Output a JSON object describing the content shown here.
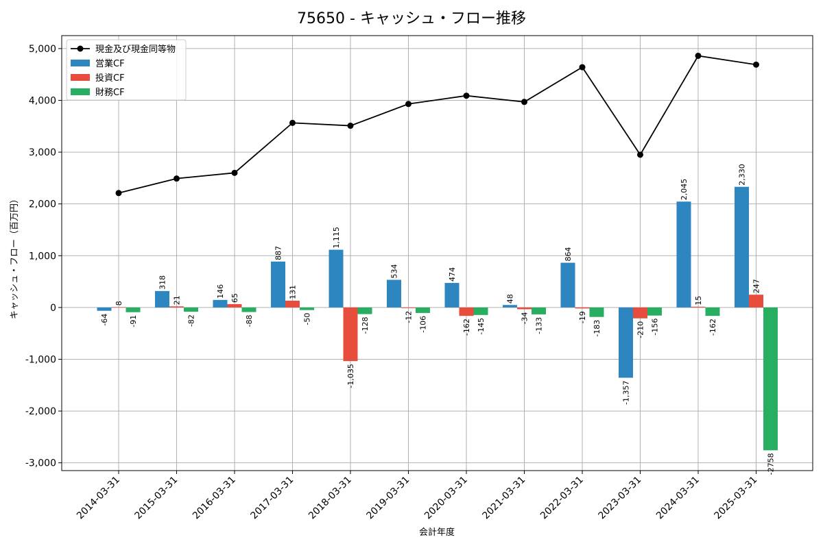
{
  "chart_data": {
    "type": "bar",
    "title": "75650 - キャッシュ・フロー推移",
    "xlabel": "会計年度",
    "ylabel": "キャッシュ・フロー（百万円）",
    "ylim": [
      -3150,
      5250
    ],
    "yticks": [
      -3000,
      -2000,
      -1000,
      0,
      1000,
      2000,
      3000,
      4000,
      5000
    ],
    "ytick_labels": [
      "-3,000",
      "-2,000",
      "-1,000",
      "0",
      "1,000",
      "2,000",
      "3,000",
      "4,000",
      "5,000"
    ],
    "grid": true,
    "legend_position": "top-left",
    "categories": [
      "2014-03-31",
      "2015-03-31",
      "2016-03-31",
      "2017-03-31",
      "2018-03-31",
      "2019-03-31",
      "2020-03-31",
      "2021-03-31",
      "2022-03-31",
      "2023-03-31",
      "2024-03-31",
      "2025-03-31"
    ],
    "series": [
      {
        "name": "営業CF",
        "kind": "bar",
        "color": "#2e86c1",
        "values": [
          -64,
          318,
          146,
          887,
          1115,
          534,
          474,
          48,
          864,
          -1357,
          2045,
          2330
        ],
        "labels": [
          "-64",
          "318",
          "146",
          "887",
          "1,115",
          "534",
          "474",
          "48",
          "864",
          "-1,357",
          "2,045",
          "2,330"
        ]
      },
      {
        "name": "投資CF",
        "kind": "bar",
        "color": "#e74c3c",
        "values": [
          8,
          21,
          65,
          131,
          -1035,
          -12,
          -162,
          -34,
          -19,
          -210,
          15,
          247
        ],
        "labels": [
          "8",
          "21",
          "65",
          "131",
          "-1,035",
          "-12",
          "-162",
          "-34",
          "-19",
          "-210",
          "15",
          "247"
        ]
      },
      {
        "name": "財務CF",
        "kind": "bar",
        "color": "#27ae60",
        "values": [
          -91,
          -82,
          -88,
          -50,
          -128,
          -106,
          -145,
          -133,
          -183,
          -156,
          -162,
          -2758
        ],
        "labels": [
          "-91",
          "-82",
          "-88",
          "-50",
          "-128",
          "-106",
          "-145",
          "-133",
          "-183",
          "-156",
          "-162",
          "-2758"
        ]
      },
      {
        "name": "現金及び現金同等物",
        "kind": "line",
        "color": "#000000",
        "values": [
          2210,
          2490,
          2600,
          3565,
          3510,
          3930,
          4090,
          3970,
          4640,
          2950,
          4860,
          4690
        ]
      }
    ]
  }
}
